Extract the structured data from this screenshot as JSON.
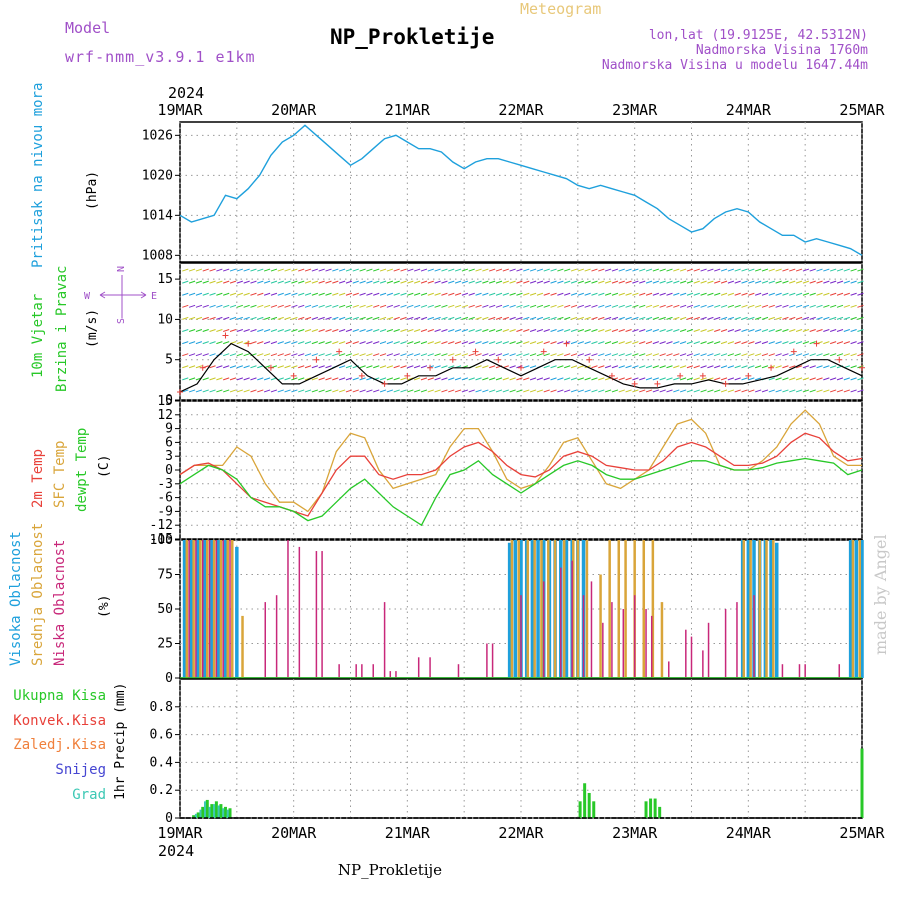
{
  "header": {
    "model_label": "Model",
    "model_value": "wrf-nmm_v3.9.1 e1km",
    "title": "NP_Prokletije",
    "meteogram": "Meteogram",
    "lonlat": "lon,lat (19.9125E, 42.5312N)",
    "elevation": "Nadmorska Visina 1760m",
    "model_elevation": "Nadmorska Visina u modelu 1647.44m",
    "year_top": "2024",
    "year_bottom": "2024",
    "footer": "NP_Prokletije",
    "credit": "made by Angel"
  },
  "colors": {
    "pressure": "#1ea0dc",
    "temp2m": "#e8413a",
    "sfc": "#d9a53a",
    "dewpt": "#28c828",
    "high_cloud": "#1ea0dc",
    "mid_cloud": "#d9a53a",
    "low_cloud": "#c8287a",
    "total_precip": "#28c828",
    "conv_precip": "#e8413a",
    "frozen": "#f0803c",
    "snow": "#4646d2",
    "graupel": "#3cc8b4",
    "model": "#a050c8"
  },
  "chart_data": {
    "type": "meteogram",
    "x_ticks": [
      "19MAR",
      "20MAR",
      "21MAR",
      "22MAR",
      "23MAR",
      "24MAR",
      "25MAR"
    ],
    "x_range_days": [
      0,
      6
    ],
    "panels": {
      "pressure": {
        "label": "Pritisak na nivou mora",
        "unit": "(hPa)",
        "ylim": [
          1007,
          1028
        ],
        "yticks": [
          "1026",
          "1020",
          "1014",
          "1008"
        ],
        "yticks_values": [
          1026,
          1020,
          1014,
          1008
        ],
        "series": {
          "x": [
            0,
            0.1,
            0.2,
            0.3,
            0.4,
            0.5,
            0.6,
            0.7,
            0.8,
            0.9,
            1.0,
            1.1,
            1.2,
            1.3,
            1.4,
            1.5,
            1.6,
            1.7,
            1.8,
            1.9,
            2.0,
            2.1,
            2.2,
            2.3,
            2.4,
            2.5,
            2.6,
            2.7,
            2.8,
            2.9,
            3.0,
            3.1,
            3.2,
            3.3,
            3.4,
            3.5,
            3.6,
            3.7,
            3.8,
            3.9,
            4.0,
            4.1,
            4.2,
            4.3,
            4.4,
            4.5,
            4.6,
            4.7,
            4.8,
            4.9,
            5.0,
            5.1,
            5.2,
            5.3,
            5.4,
            5.5,
            5.6,
            5.7,
            5.8,
            5.9,
            6.0
          ],
          "y": [
            1014,
            1013,
            1013.5,
            1014,
            1017,
            1016.5,
            1018,
            1020,
            1023,
            1025,
            1026,
            1027.5,
            1026,
            1024.5,
            1023,
            1021.5,
            1022.5,
            1024,
            1025.5,
            1026,
            1025,
            1024,
            1024,
            1023.5,
            1022,
            1021,
            1022,
            1022.5,
            1022.5,
            1022,
            1021.5,
            1021,
            1020.5,
            1020,
            1019.5,
            1018.5,
            1018,
            1018.5,
            1018,
            1017.5,
            1017,
            1016,
            1015,
            1013.5,
            1012.5,
            1011.5,
            1012,
            1013.5,
            1014.5,
            1015,
            1014.5,
            1013,
            1012,
            1011,
            1011,
            1010,
            1010.5,
            1010,
            1009.5,
            1009,
            1008
          ]
        }
      },
      "wind": {
        "label1": "10m Vjetar",
        "label2": "Brzina i Pravac",
        "unit": "(m/s)",
        "ylim": [
          0,
          17
        ],
        "yticks": [
          "15",
          "10",
          "5",
          "0"
        ],
        "yticks_values": [
          15,
          10,
          5,
          0
        ],
        "compass": {
          "n": "N",
          "s": "S",
          "e": "E",
          "w": "W"
        },
        "speed": {
          "x": [
            0,
            0.15,
            0.3,
            0.45,
            0.6,
            0.75,
            0.9,
            1.05,
            1.2,
            1.35,
            1.5,
            1.65,
            1.8,
            1.95,
            2.1,
            2.25,
            2.4,
            2.55,
            2.7,
            2.85,
            3.0,
            3.15,
            3.3,
            3.45,
            3.6,
            3.75,
            3.9,
            4.05,
            4.2,
            4.35,
            4.5,
            4.65,
            4.8,
            4.95,
            5.1,
            5.25,
            5.4,
            5.55,
            5.7,
            5.85,
            6.0
          ],
          "y": [
            1,
            2,
            5,
            7,
            6,
            4,
            2,
            2,
            3,
            4,
            5,
            3,
            2,
            2,
            3,
            3,
            4,
            4,
            5,
            4,
            3,
            4,
            5,
            5,
            4,
            3,
            2,
            1.5,
            1.5,
            2,
            2,
            2.5,
            2,
            2,
            2.5,
            3,
            4,
            5,
            5,
            4,
            3
          ]
        },
        "gust": {
          "x": [
            0,
            0.2,
            0.4,
            0.6,
            0.8,
            1.0,
            1.2,
            1.4,
            1.6,
            1.8,
            2.0,
            2.2,
            2.4,
            2.6,
            2.8,
            3.0,
            3.2,
            3.4,
            3.6,
            3.8,
            4.0,
            4.2,
            4.4,
            4.6,
            4.8,
            5.0,
            5.2,
            5.4,
            5.6,
            5.8,
            6.0
          ],
          "y": [
            1,
            4,
            8,
            7,
            4,
            3,
            5,
            6,
            3,
            2,
            3,
            4,
            5,
            6,
            5,
            4,
            6,
            7,
            5,
            3,
            2,
            2,
            3,
            3,
            2,
            3,
            4,
            6,
            7,
            5,
            4
          ]
        }
      },
      "temperature": {
        "label1": "2m Temp",
        "label2": "SFC Temp",
        "label3": "dewpt Temp",
        "unit": "(C)",
        "ylim": [
          -15,
          15
        ],
        "yticks": [
          "15",
          "12",
          "9",
          "6",
          "3",
          "0",
          "-3",
          "-6",
          "-9",
          "-12",
          "-15"
        ],
        "yticks_values": [
          15,
          12,
          9,
          6,
          3,
          0,
          -3,
          -6,
          -9,
          -12,
          -15
        ],
        "x": [
          0,
          0.125,
          0.25,
          0.375,
          0.5,
          0.625,
          0.75,
          0.875,
          1.0,
          1.125,
          1.25,
          1.375,
          1.5,
          1.625,
          1.75,
          1.875,
          2.0,
          2.125,
          2.25,
          2.375,
          2.5,
          2.625,
          2.75,
          2.875,
          3.0,
          3.125,
          3.25,
          3.375,
          3.5,
          3.625,
          3.75,
          3.875,
          4.0,
          4.125,
          4.25,
          4.375,
          4.5,
          4.625,
          4.75,
          4.875,
          5.0,
          5.125,
          5.25,
          5.375,
          5.5,
          5.625,
          5.75,
          5.875,
          6.0
        ],
        "t2m": [
          -1,
          1,
          1.5,
          0,
          -3,
          -6,
          -7,
          -8,
          -9,
          -10,
          -5,
          0,
          3,
          3,
          -1,
          -2,
          -1,
          -1,
          0,
          3,
          5,
          6,
          4,
          1,
          -1,
          -1.5,
          0,
          3,
          4,
          3,
          1,
          0.5,
          0,
          0,
          2,
          5,
          6,
          5,
          3,
          1,
          1,
          1.5,
          3,
          6,
          8,
          7,
          4,
          2,
          2.5
        ],
        "sfc": [
          -1,
          1,
          1,
          1,
          5,
          3,
          -3,
          -7,
          -7,
          -9,
          -5,
          4,
          8,
          7,
          0,
          -4,
          -3,
          -2,
          -1,
          5,
          9,
          9,
          4,
          -2,
          -4,
          -3,
          1,
          6,
          7,
          2,
          -3,
          -4,
          -2,
          0,
          5,
          10,
          11,
          8,
          1,
          0,
          0,
          2,
          5,
          10,
          13,
          10,
          3,
          1,
          1
        ],
        "dewpt": [
          -3,
          -1,
          1,
          0,
          -2,
          -6,
          -8,
          -8,
          -9,
          -11,
          -10,
          -7,
          -4,
          -2,
          -5,
          -8,
          -10,
          -12,
          -6,
          -1,
          0,
          2,
          -1,
          -3,
          -5,
          -3,
          -1,
          1,
          2,
          1,
          -1,
          -2,
          -2,
          -1,
          0,
          1,
          2,
          2,
          1,
          0,
          0,
          0.5,
          1.5,
          2,
          2.5,
          2,
          1.5,
          -1,
          0
        ]
      },
      "cloud": {
        "label1": "Visoka Oblacnost",
        "label2": "Srednja Oblacnost",
        "label3": "Niska Oblacnost",
        "unit": "(%)",
        "ylim": [
          0,
          100
        ],
        "yticks": [
          "100",
          "75",
          "50",
          "25",
          "0"
        ],
        "yticks_values": [
          100,
          75,
          50,
          25,
          0
        ],
        "high": {
          "x": [
            0.04,
            0.1,
            0.16,
            0.22,
            0.28,
            0.34,
            0.4,
            0.5,
            2.9,
            2.95,
            3.0,
            3.05,
            3.1,
            3.15,
            3.2,
            3.25,
            3.3,
            3.35,
            3.4,
            3.45,
            3.5,
            3.55,
            4.95,
            5.0,
            5.05,
            5.1,
            5.15,
            5.2,
            5.25,
            5.9,
            5.95,
            6.0
          ],
          "y": [
            100,
            100,
            100,
            100,
            100,
            100,
            100,
            95,
            98,
            100,
            100,
            100,
            100,
            100,
            100,
            100,
            100,
            100,
            100,
            100,
            100,
            100,
            100,
            100,
            100,
            100,
            100,
            100,
            98,
            100,
            100,
            100
          ]
        },
        "mid": {
          "x": [
            0.06,
            0.12,
            0.18,
            0.24,
            0.3,
            0.36,
            0.42,
            0.46,
            0.55,
            2.92,
            2.98,
            3.06,
            3.12,
            3.18,
            3.24,
            3.3,
            3.38,
            3.46,
            3.5,
            3.58,
            3.7,
            3.78,
            3.86,
            3.92,
            4.0,
            4.08,
            4.16,
            4.24,
            4.96,
            5.02,
            5.1,
            5.16,
            5.22,
            5.92,
            5.98
          ],
          "y": [
            100,
            100,
            100,
            100,
            100,
            100,
            100,
            100,
            45,
            100,
            100,
            100,
            100,
            100,
            100,
            100,
            100,
            100,
            100,
            100,
            75,
            100,
            100,
            100,
            100,
            100,
            100,
            55,
            100,
            100,
            100,
            100,
            100,
            100,
            100
          ]
        },
        "low": {
          "x": [
            0.08,
            0.14,
            0.2,
            0.26,
            0.32,
            0.38,
            0.44,
            0.75,
            0.85,
            0.95,
            1.05,
            1.2,
            1.25,
            1.4,
            1.55,
            1.6,
            1.7,
            1.8,
            1.85,
            1.9,
            2.1,
            2.2,
            2.45,
            2.7,
            2.75,
            3.0,
            3.2,
            3.35,
            3.45,
            3.55,
            3.62,
            3.72,
            3.8,
            3.9,
            4.0,
            4.1,
            4.15,
            4.3,
            4.45,
            4.5,
            4.6,
            4.65,
            4.8,
            4.9,
            5.05,
            5.3,
            5.45,
            5.5,
            5.8
          ],
          "y": [
            100,
            100,
            100,
            100,
            100,
            100,
            100,
            55,
            60,
            100,
            95,
            92,
            92,
            10,
            10,
            10,
            10,
            55,
            5,
            5,
            15,
            15,
            10,
            25,
            25,
            60,
            70,
            80,
            85,
            60,
            70,
            40,
            55,
            50,
            60,
            50,
            45,
            12,
            35,
            30,
            20,
            40,
            50,
            55,
            60,
            10,
            10,
            10,
            10
          ]
        }
      },
      "precip": {
        "legend": [
          "Ukupna Kisa",
          "Konvek.Kisa",
          "Zaledj.Kisa",
          "Snijeg",
          "Grad"
        ],
        "unit": "1hr Precip (mm)",
        "ylim": [
          0,
          1
        ],
        "yticks": [
          "0.8",
          "0.6",
          "0.4",
          "0.2",
          "0"
        ],
        "yticks_values": [
          0.8,
          0.6,
          0.4,
          0.2,
          0
        ],
        "total": {
          "x": [
            0.12,
            0.16,
            0.2,
            0.24,
            0.28,
            0.32,
            0.36,
            0.4,
            0.44,
            3.52,
            3.56,
            3.6,
            3.64,
            4.1,
            4.14,
            4.18,
            4.22,
            6.0
          ],
          "y": [
            0.02,
            0.04,
            0.08,
            0.13,
            0.1,
            0.12,
            0.1,
            0.08,
            0.07,
            0.12,
            0.25,
            0.18,
            0.12,
            0.12,
            0.14,
            0.14,
            0.08,
            0.5
          ]
        },
        "snow": {
          "x": [
            0.14,
            0.18,
            0.22,
            0.26,
            0.3,
            0.34,
            0.38,
            0.42
          ],
          "y": [
            0.03,
            0.06,
            0.12,
            0.08,
            0.1,
            0.09,
            0.07,
            0.06
          ]
        }
      }
    }
  }
}
